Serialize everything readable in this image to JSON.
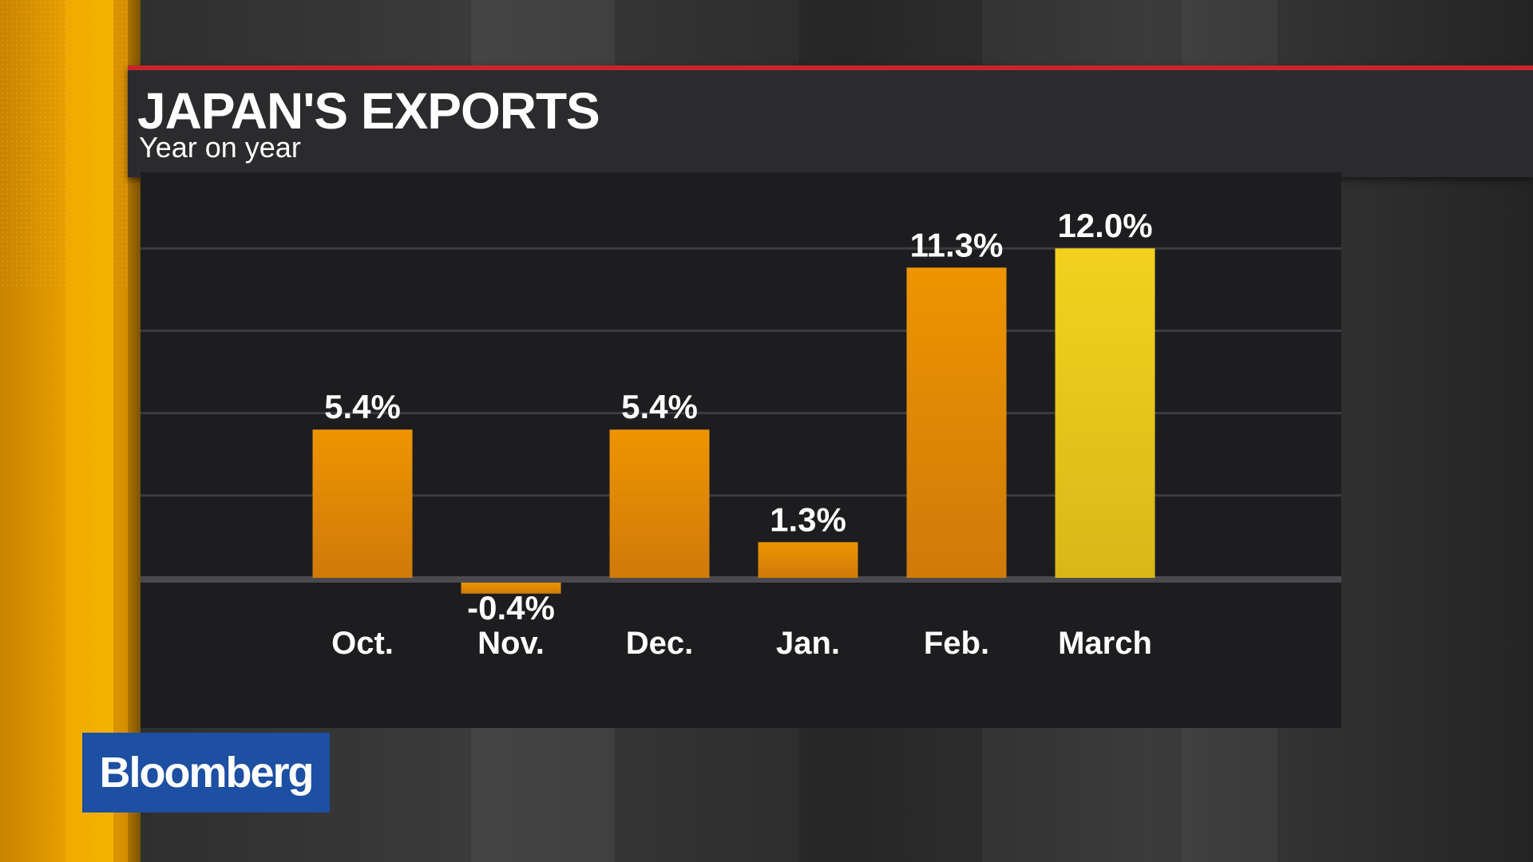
{
  "header": {
    "title": "JAPAN'S EXPORTS",
    "subtitle": "Year on year"
  },
  "brand": {
    "logo_text": "Bloomberg"
  },
  "colors": {
    "accent_red": "#c8252a",
    "bar_orange": "#e58a00",
    "bar_highlight": "#f0d020",
    "logo_blue": "#1d4fa2",
    "side_bar": "#f0aa00"
  },
  "chart_data": {
    "type": "bar",
    "title": "JAPAN'S EXPORTS",
    "subtitle": "Year on year",
    "categories": [
      "Oct.",
      "Nov.",
      "Dec.",
      "Jan.",
      "Feb.",
      "March"
    ],
    "values": [
      5.4,
      -0.4,
      5.4,
      1.3,
      11.3,
      12.0
    ],
    "data_labels": [
      "5.4%",
      "-0.4%",
      "5.4%",
      "1.3%",
      "11.3%",
      "12.0%"
    ],
    "highlight_index": 5,
    "xlabel": "",
    "ylabel": "",
    "ylim": [
      -0.5,
      12.5
    ],
    "grid": true
  }
}
